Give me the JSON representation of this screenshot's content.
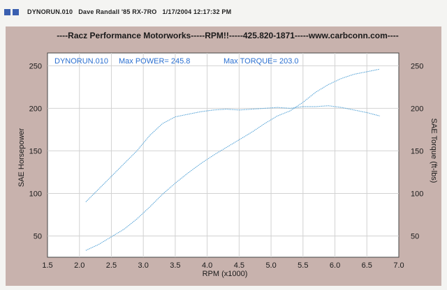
{
  "header": {
    "run_name": "DYNORUN.010",
    "vehicle": "Dave Randall '85 RX-7RO",
    "datetime": "1/17/2004 12:17:32 PM"
  },
  "colors": {
    "frame": "#c8b2ad",
    "plot_bg": "#ffffff",
    "curve": "#5aa6d8",
    "text": "#1a1a1a",
    "header_icon": "#3a5fb0",
    "legend_text": "#2a6fd0"
  },
  "chart_data": {
    "type": "line",
    "title": "----Racz Performance Motorworks-----RPM!!-----425.820-1871-----www.carbconn.com----",
    "legend_run": "DYNORUN.010",
    "legend_power": "Max POWER= 245.8",
    "legend_torque": "Max TORQUE= 203.0",
    "xlabel": "RPM (x1000)",
    "ylabel_left": "SAE Horsepower",
    "ylabel_right": "SAE Torque (ft-lbs)",
    "xlim": [
      1.5,
      7.0
    ],
    "ylim": [
      25,
      265
    ],
    "x_ticks": [
      "1.5",
      "2.0",
      "2.5",
      "3.0",
      "3.5",
      "4.0",
      "4.5",
      "5.0",
      "5.5",
      "6.0",
      "6.5",
      "7.0"
    ],
    "y_ticks_left": [
      "50",
      "100",
      "150",
      "200",
      "250"
    ],
    "y_ticks_right": [
      "50",
      "100",
      "150",
      "200",
      "250"
    ],
    "grid": true,
    "series": [
      {
        "name": "SAE Horsepower",
        "x": [
          2.1,
          2.3,
          2.5,
          2.7,
          2.9,
          3.1,
          3.3,
          3.5,
          3.7,
          3.9,
          4.1,
          4.3,
          4.5,
          4.7,
          4.9,
          5.1,
          5.3,
          5.5,
          5.7,
          5.9,
          6.1,
          6.3,
          6.5,
          6.7
        ],
        "values": [
          33,
          40,
          49,
          58,
          70,
          84,
          99,
          112,
          124,
          135,
          145,
          154,
          163,
          172,
          182,
          191,
          197,
          207,
          219,
          228,
          235,
          240,
          243,
          246
        ]
      },
      {
        "name": "SAE Torque (ft-lbs)",
        "x": [
          2.1,
          2.3,
          2.5,
          2.7,
          2.9,
          3.1,
          3.3,
          3.5,
          3.7,
          3.9,
          4.1,
          4.3,
          4.5,
          4.7,
          4.9,
          5.1,
          5.3,
          5.5,
          5.7,
          5.9,
          6.1,
          6.3,
          6.5,
          6.7
        ],
        "values": [
          90,
          105,
          120,
          135,
          150,
          168,
          182,
          190,
          193,
          196,
          198,
          199,
          198,
          199,
          200,
          201,
          200,
          202,
          202,
          203,
          201,
          198,
          195,
          191
        ]
      }
    ]
  }
}
